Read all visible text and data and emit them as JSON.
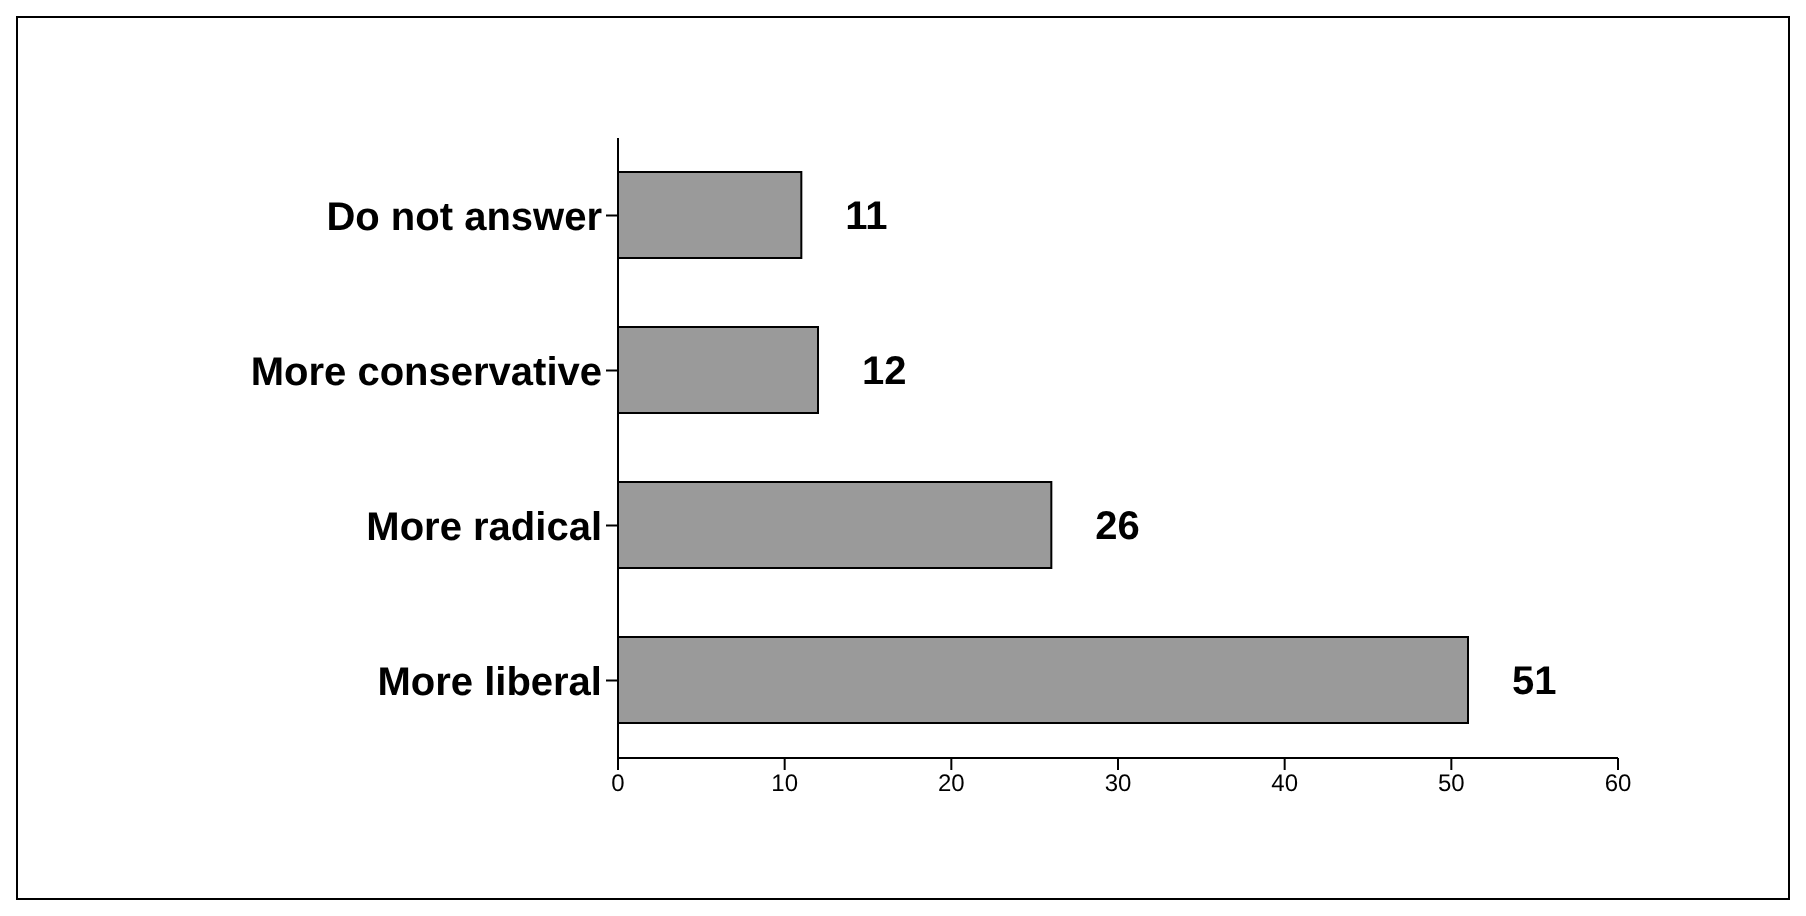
{
  "chart_data": {
    "type": "bar",
    "orientation": "horizontal",
    "categories": [
      "Do not answer",
      "More conservative",
      "More radical",
      "More liberal"
    ],
    "values": [
      11,
      12,
      26,
      51
    ],
    "color": "#9a9a9a",
    "xlim": [
      0,
      60
    ],
    "xticks": [
      0,
      10,
      20,
      30,
      40,
      50,
      60
    ],
    "data_labels": true,
    "grid": false,
    "legend": false
  }
}
